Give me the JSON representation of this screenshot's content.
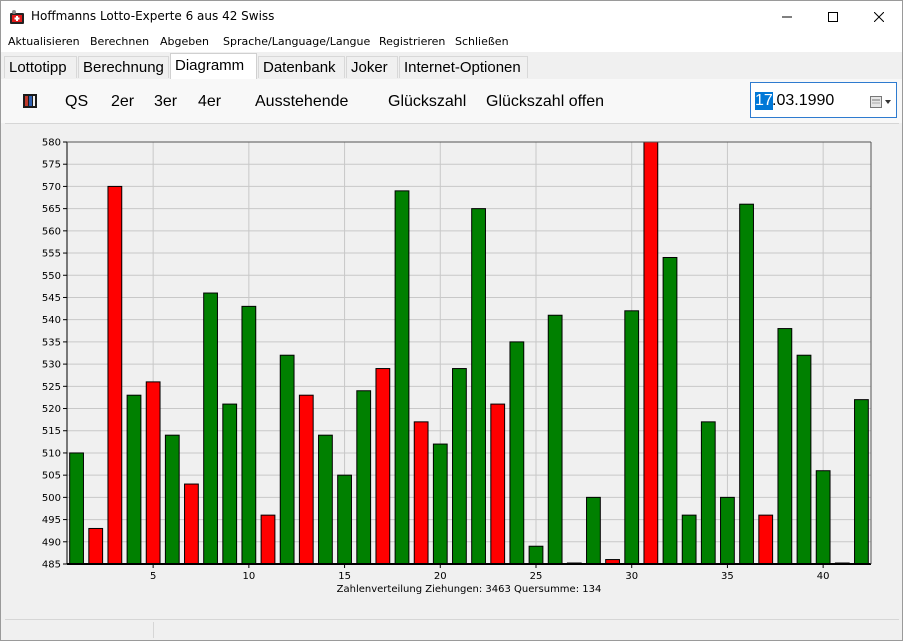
{
  "window": {
    "title": "Hoffmanns Lotto-Experte  6 aus 42 Swiss"
  },
  "menu": [
    "Aktualisieren",
    "Berechnen",
    "Abgeben",
    "Sprache/Language/Langue",
    "Registrieren",
    "Schließen"
  ],
  "tabs": [
    {
      "label": "Lottotipp"
    },
    {
      "label": "Berechnung"
    },
    {
      "label": "Diagramm",
      "active": true
    },
    {
      "label": "Datenbank"
    },
    {
      "label": "Joker"
    },
    {
      "label": "Internet-Optionen"
    }
  ],
  "toolbar": {
    "film_icon": "film-icon",
    "buttons": [
      "QS",
      "2er",
      "3er",
      "4er",
      "Ausstehende",
      "Glückszahl",
      "Glückszahl offen"
    ]
  },
  "date_picker": {
    "selected_part": "17",
    "rest": ".03.1990",
    "icon": "calendar-dropdown-icon"
  },
  "chart_data": {
    "type": "bar",
    "x": [
      1,
      2,
      3,
      4,
      5,
      6,
      7,
      8,
      9,
      10,
      11,
      12,
      13,
      14,
      15,
      16,
      17,
      18,
      19,
      20,
      21,
      22,
      23,
      24,
      25,
      26,
      27,
      28,
      29,
      30,
      31,
      32,
      33,
      34,
      35,
      36,
      37,
      38,
      39,
      40,
      41,
      42
    ],
    "values": [
      510,
      493,
      570,
      523,
      526,
      514,
      503,
      546,
      521,
      543,
      496,
      532,
      523,
      514,
      505,
      524,
      529,
      569,
      517,
      512,
      529,
      565,
      521,
      535,
      489,
      541,
      485,
      500,
      486,
      542,
      580,
      554,
      496,
      517,
      500,
      566,
      496,
      538,
      532,
      506,
      485,
      522
    ],
    "highlight": [
      false,
      true,
      true,
      false,
      true,
      false,
      true,
      false,
      false,
      false,
      true,
      false,
      true,
      false,
      false,
      false,
      true,
      false,
      true,
      false,
      false,
      false,
      true,
      false,
      false,
      false,
      false,
      false,
      true,
      false,
      true,
      false,
      false,
      false,
      false,
      false,
      true,
      false,
      false,
      false,
      true,
      false
    ],
    "colors": {
      "normal": "#008000",
      "highlight": "#ff0000",
      "border": "#000000"
    },
    "ylim": [
      485,
      580
    ],
    "yticks": [
      485,
      490,
      495,
      500,
      505,
      510,
      515,
      520,
      525,
      530,
      535,
      540,
      545,
      550,
      555,
      560,
      565,
      570,
      575,
      580
    ],
    "xticks": [
      5,
      10,
      15,
      20,
      25,
      30,
      35,
      40
    ],
    "grid": true,
    "caption": "Zahlenverteilung    Ziehungen: 3463    Quersumme: 134"
  }
}
